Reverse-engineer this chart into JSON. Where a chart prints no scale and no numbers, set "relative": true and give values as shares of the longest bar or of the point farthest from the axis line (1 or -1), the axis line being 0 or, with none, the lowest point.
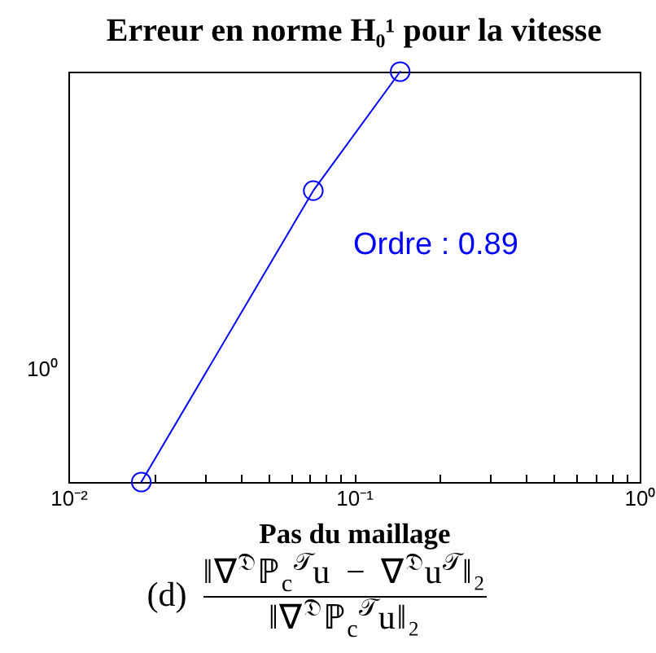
{
  "chart_data": {
    "type": "line",
    "title": "Erreur en norme H₀¹ pour la vitesse",
    "xlabel": "Pas du maillage",
    "annotations": [
      "Ordre : 0.89",
      "10⁰",
      "(d)",
      "‖∇$^{𝔇}$ℙ$_{c}$$^{𝒯}$u − ∇$^{𝔇}$u$^{𝒯}$‖₂",
      "‖∇$^{𝔇}$ℙ$_{c}$$^{𝒯}$u‖₂"
    ],
    "x": [
      0.018,
      0.072,
      0.145
    ],
    "series": [
      {
        "color": "#0000ff",
        "values": [
          0,
          0.71,
          1
        ]
      }
    ],
    "relative": true,
    "log": "x",
    "marker": "circle",
    "grid": false,
    "xlim": [
      0.01,
      1
    ],
    "xticks": [
      {
        "value": 0.01,
        "label": "10⁻²"
      },
      {
        "value": 0.02,
        "label": null
      },
      {
        "value": 0.03,
        "label": null
      },
      {
        "value": 0.04,
        "label": null
      },
      {
        "value": 0.05,
        "label": null
      },
      {
        "value": 0.06,
        "label": null
      },
      {
        "value": 0.07,
        "label": null
      },
      {
        "value": 0.08,
        "label": null
      },
      {
        "value": 0.09,
        "label": null
      },
      {
        "value": 0.1,
        "label": "10⁻¹"
      },
      {
        "value": 0.2,
        "label": null
      },
      {
        "value": 0.3,
        "label": null
      },
      {
        "value": 0.4,
        "label": null
      },
      {
        "value": 0.5,
        "label": null
      },
      {
        "value": 0.6,
        "label": null
      },
      {
        "value": 0.7,
        "label": null
      },
      {
        "value": 0.8,
        "label": null
      },
      {
        "value": 0.9,
        "label": null
      },
      {
        "value": 1,
        "label": "10⁰"
      }
    ]
  }
}
